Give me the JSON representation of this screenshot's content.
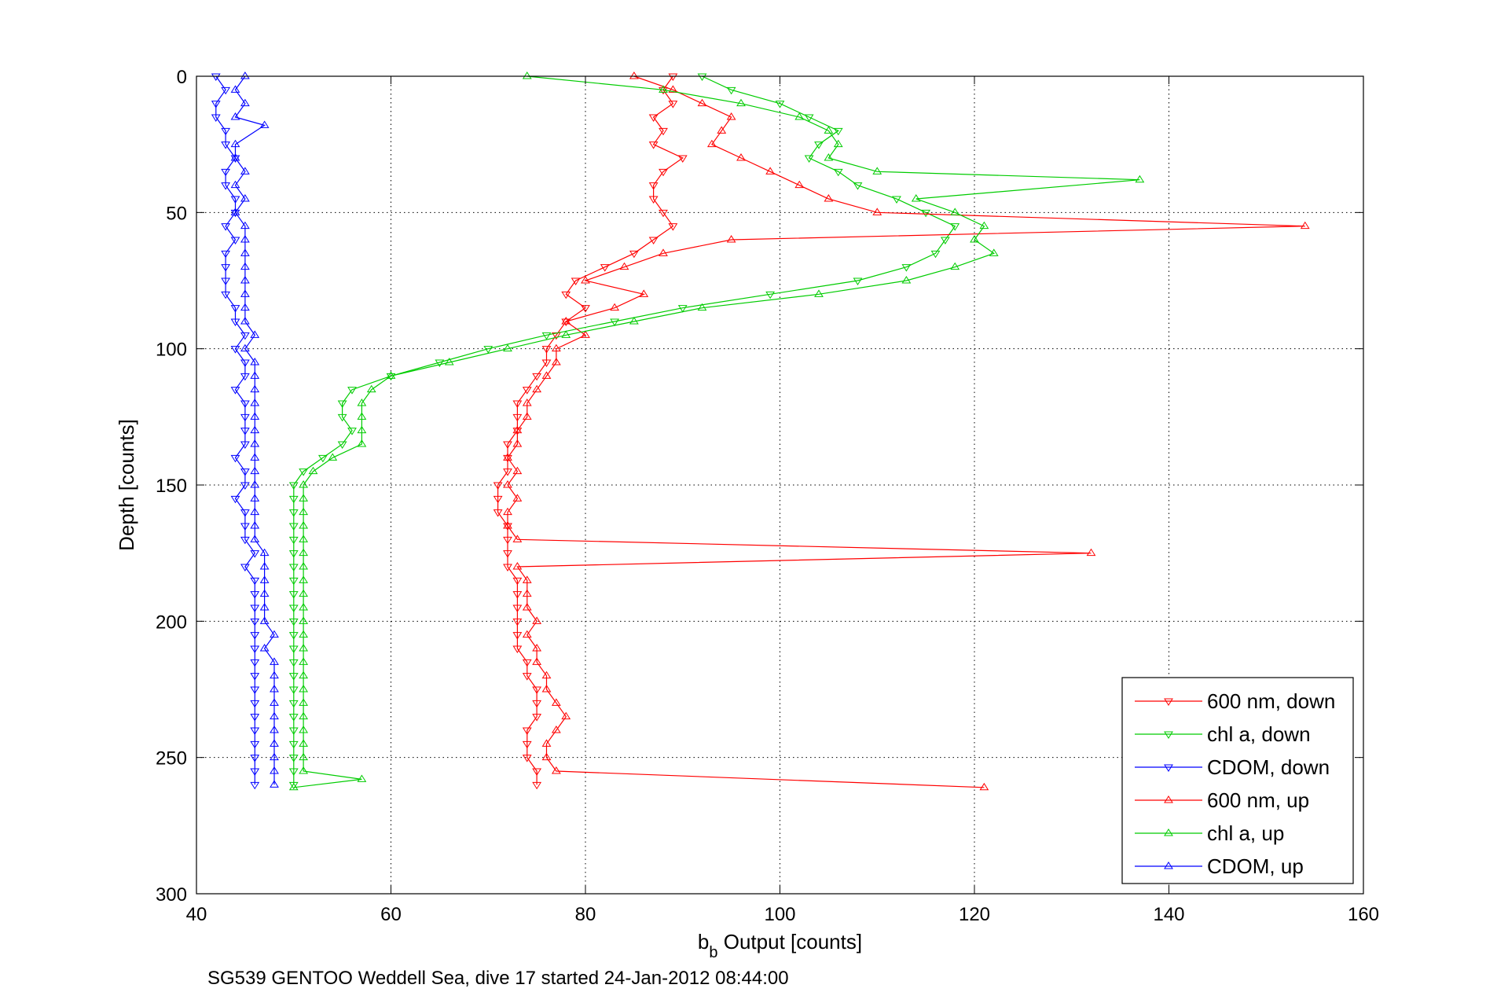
{
  "chart_data": {
    "type": "line",
    "xlabel_main": "b",
    "xlabel_sub": "b",
    "xlabel_rest": " Output [counts]",
    "ylabel": "Depth [counts]",
    "caption": "SG539 GENTOO Weddell Sea, dive 17 started 24-Jan-2012 08:44:00",
    "xlim": [
      40,
      160
    ],
    "ylim": [
      0,
      300
    ],
    "y_reversed": true,
    "grid": true,
    "legend_position": "bottom-right",
    "x_ticks": [
      "40",
      "60",
      "80",
      "100",
      "120",
      "140",
      "160"
    ],
    "y_ticks": [
      "0",
      "50",
      "100",
      "150",
      "200",
      "250",
      "300"
    ],
    "series": [
      {
        "name": "600 nm, down",
        "color": "#ff0000",
        "marker": "triangle-down",
        "points": [
          [
            89,
            0
          ],
          [
            88,
            5
          ],
          [
            89,
            10
          ],
          [
            87,
            15
          ],
          [
            88,
            20
          ],
          [
            87,
            25
          ],
          [
            90,
            30
          ],
          [
            88,
            35
          ],
          [
            87,
            40
          ],
          [
            87,
            45
          ],
          [
            88,
            50
          ],
          [
            89,
            55
          ],
          [
            87,
            60
          ],
          [
            85,
            65
          ],
          [
            82,
            70
          ],
          [
            79,
            75
          ],
          [
            78,
            80
          ],
          [
            80,
            85
          ],
          [
            78,
            90
          ],
          [
            77,
            95
          ],
          [
            76,
            100
          ],
          [
            76,
            105
          ],
          [
            75,
            110
          ],
          [
            74,
            115
          ],
          [
            73,
            120
          ],
          [
            73,
            125
          ],
          [
            73,
            130
          ],
          [
            72,
            135
          ],
          [
            72,
            140
          ],
          [
            72,
            145
          ],
          [
            71,
            150
          ],
          [
            71,
            155
          ],
          [
            71,
            160
          ],
          [
            72,
            165
          ],
          [
            72,
            170
          ],
          [
            72,
            175
          ],
          [
            72,
            180
          ],
          [
            73,
            185
          ],
          [
            73,
            190
          ],
          [
            73,
            195
          ],
          [
            73,
            200
          ],
          [
            73,
            205
          ],
          [
            73,
            210
          ],
          [
            74,
            215
          ],
          [
            74,
            220
          ],
          [
            75,
            225
          ],
          [
            75,
            230
          ],
          [
            75,
            235
          ],
          [
            74,
            240
          ],
          [
            74,
            245
          ],
          [
            74,
            250
          ],
          [
            75,
            255
          ],
          [
            75,
            260
          ]
        ]
      },
      {
        "name": "chl a, down",
        "color": "#00cc00",
        "marker": "triangle-down",
        "points": [
          [
            92,
            0
          ],
          [
            95,
            5
          ],
          [
            100,
            10
          ],
          [
            103,
            15
          ],
          [
            106,
            20
          ],
          [
            104,
            25
          ],
          [
            103,
            30
          ],
          [
            106,
            35
          ],
          [
            108,
            40
          ],
          [
            112,
            45
          ],
          [
            115,
            50
          ],
          [
            118,
            55
          ],
          [
            117,
            60
          ],
          [
            116,
            65
          ],
          [
            113,
            70
          ],
          [
            108,
            75
          ],
          [
            99,
            80
          ],
          [
            90,
            85
          ],
          [
            83,
            90
          ],
          [
            76,
            95
          ],
          [
            70,
            100
          ],
          [
            65,
            105
          ],
          [
            60,
            110
          ],
          [
            56,
            115
          ],
          [
            55,
            120
          ],
          [
            55,
            125
          ],
          [
            56,
            130
          ],
          [
            55,
            135
          ],
          [
            53,
            140
          ],
          [
            51,
            145
          ],
          [
            50,
            150
          ],
          [
            50,
            155
          ],
          [
            50,
            160
          ],
          [
            50,
            165
          ],
          [
            50,
            170
          ],
          [
            50,
            175
          ],
          [
            50,
            180
          ],
          [
            50,
            185
          ],
          [
            50,
            190
          ],
          [
            50,
            195
          ],
          [
            50,
            200
          ],
          [
            50,
            205
          ],
          [
            50,
            210
          ],
          [
            50,
            215
          ],
          [
            50,
            220
          ],
          [
            50,
            225
          ],
          [
            50,
            230
          ],
          [
            50,
            235
          ],
          [
            50,
            240
          ],
          [
            50,
            245
          ],
          [
            50,
            250
          ],
          [
            50,
            255
          ],
          [
            50,
            260
          ]
        ]
      },
      {
        "name": "CDOM, down",
        "color": "#0000ff",
        "marker": "triangle-down",
        "points": [
          [
            42,
            0
          ],
          [
            43,
            5
          ],
          [
            42,
            10
          ],
          [
            42,
            15
          ],
          [
            43,
            20
          ],
          [
            43,
            25
          ],
          [
            44,
            30
          ],
          [
            43,
            35
          ],
          [
            43,
            40
          ],
          [
            44,
            45
          ],
          [
            44,
            50
          ],
          [
            43,
            55
          ],
          [
            44,
            60
          ],
          [
            43,
            65
          ],
          [
            43,
            70
          ],
          [
            43,
            75
          ],
          [
            43,
            80
          ],
          [
            44,
            85
          ],
          [
            44,
            90
          ],
          [
            45,
            95
          ],
          [
            44,
            100
          ],
          [
            45,
            105
          ],
          [
            45,
            110
          ],
          [
            44,
            115
          ],
          [
            45,
            120
          ],
          [
            45,
            125
          ],
          [
            45,
            130
          ],
          [
            45,
            135
          ],
          [
            44,
            140
          ],
          [
            45,
            145
          ],
          [
            45,
            150
          ],
          [
            44,
            155
          ],
          [
            45,
            160
          ],
          [
            45,
            165
          ],
          [
            45,
            170
          ],
          [
            46,
            175
          ],
          [
            45,
            180
          ],
          [
            46,
            185
          ],
          [
            46,
            190
          ],
          [
            46,
            195
          ],
          [
            46,
            200
          ],
          [
            46,
            205
          ],
          [
            46,
            210
          ],
          [
            46,
            215
          ],
          [
            46,
            220
          ],
          [
            46,
            225
          ],
          [
            46,
            230
          ],
          [
            46,
            235
          ],
          [
            46,
            240
          ],
          [
            46,
            245
          ],
          [
            46,
            250
          ],
          [
            46,
            255
          ],
          [
            46,
            260
          ]
        ]
      },
      {
        "name": "600 nm, up",
        "color": "#ff0000",
        "marker": "triangle-up",
        "points": [
          [
            85,
            0
          ],
          [
            89,
            5
          ],
          [
            92,
            10
          ],
          [
            95,
            15
          ],
          [
            94,
            20
          ],
          [
            93,
            25
          ],
          [
            96,
            30
          ],
          [
            99,
            35
          ],
          [
            102,
            40
          ],
          [
            105,
            45
          ],
          [
            110,
            50
          ],
          [
            154,
            55
          ],
          [
            95,
            60
          ],
          [
            88,
            65
          ],
          [
            84,
            70
          ],
          [
            80,
            75
          ],
          [
            86,
            80
          ],
          [
            83,
            85
          ],
          [
            78,
            90
          ],
          [
            80,
            95
          ],
          [
            77,
            100
          ],
          [
            77,
            105
          ],
          [
            76,
            110
          ],
          [
            75,
            115
          ],
          [
            74,
            120
          ],
          [
            74,
            125
          ],
          [
            73,
            130
          ],
          [
            73,
            135
          ],
          [
            72,
            140
          ],
          [
            73,
            145
          ],
          [
            72,
            150
          ],
          [
            73,
            155
          ],
          [
            72,
            160
          ],
          [
            72,
            165
          ],
          [
            73,
            170
          ],
          [
            132,
            175
          ],
          [
            73,
            180
          ],
          [
            74,
            185
          ],
          [
            74,
            190
          ],
          [
            74,
            195
          ],
          [
            75,
            200
          ],
          [
            74,
            205
          ],
          [
            75,
            210
          ],
          [
            75,
            215
          ],
          [
            76,
            220
          ],
          [
            76,
            225
          ],
          [
            77,
            230
          ],
          [
            78,
            235
          ],
          [
            77,
            240
          ],
          [
            76,
            245
          ],
          [
            76,
            250
          ],
          [
            77,
            255
          ],
          [
            121,
            261
          ]
        ]
      },
      {
        "name": "chl a, up",
        "color": "#00cc00",
        "marker": "triangle-up",
        "points": [
          [
            74,
            0
          ],
          [
            88,
            5
          ],
          [
            96,
            10
          ],
          [
            102,
            15
          ],
          [
            105,
            20
          ],
          [
            106,
            25
          ],
          [
            105,
            30
          ],
          [
            110,
            35
          ],
          [
            137,
            38
          ],
          [
            114,
            45
          ],
          [
            118,
            50
          ],
          [
            121,
            55
          ],
          [
            120,
            60
          ],
          [
            122,
            65
          ],
          [
            118,
            70
          ],
          [
            113,
            75
          ],
          [
            104,
            80
          ],
          [
            92,
            85
          ],
          [
            85,
            90
          ],
          [
            78,
            95
          ],
          [
            72,
            100
          ],
          [
            66,
            105
          ],
          [
            60,
            110
          ],
          [
            58,
            115
          ],
          [
            57,
            120
          ],
          [
            57,
            125
          ],
          [
            57,
            130
          ],
          [
            57,
            135
          ],
          [
            54,
            140
          ],
          [
            52,
            145
          ],
          [
            51,
            150
          ],
          [
            51,
            155
          ],
          [
            51,
            160
          ],
          [
            51,
            165
          ],
          [
            51,
            170
          ],
          [
            51,
            175
          ],
          [
            51,
            180
          ],
          [
            51,
            185
          ],
          [
            51,
            190
          ],
          [
            51,
            195
          ],
          [
            51,
            200
          ],
          [
            51,
            205
          ],
          [
            51,
            210
          ],
          [
            51,
            215
          ],
          [
            51,
            220
          ],
          [
            51,
            225
          ],
          [
            51,
            230
          ],
          [
            51,
            235
          ],
          [
            51,
            240
          ],
          [
            51,
            245
          ],
          [
            51,
            250
          ],
          [
            51,
            255
          ],
          [
            57,
            258
          ],
          [
            50,
            261
          ]
        ]
      },
      {
        "name": "CDOM, up",
        "color": "#0000ff",
        "marker": "triangle-up",
        "points": [
          [
            45,
            0
          ],
          [
            44,
            5
          ],
          [
            45,
            10
          ],
          [
            44,
            15
          ],
          [
            47,
            18
          ],
          [
            44,
            25
          ],
          [
            44,
            30
          ],
          [
            45,
            35
          ],
          [
            44,
            40
          ],
          [
            45,
            45
          ],
          [
            44,
            50
          ],
          [
            45,
            55
          ],
          [
            45,
            60
          ],
          [
            45,
            65
          ],
          [
            45,
            70
          ],
          [
            45,
            75
          ],
          [
            45,
            80
          ],
          [
            45,
            85
          ],
          [
            45,
            90
          ],
          [
            46,
            95
          ],
          [
            45,
            100
          ],
          [
            46,
            105
          ],
          [
            46,
            110
          ],
          [
            46,
            115
          ],
          [
            46,
            120
          ],
          [
            46,
            125
          ],
          [
            46,
            130
          ],
          [
            46,
            135
          ],
          [
            46,
            140
          ],
          [
            46,
            145
          ],
          [
            46,
            150
          ],
          [
            46,
            155
          ],
          [
            46,
            160
          ],
          [
            46,
            165
          ],
          [
            46,
            170
          ],
          [
            47,
            175
          ],
          [
            47,
            180
          ],
          [
            47,
            185
          ],
          [
            47,
            190
          ],
          [
            47,
            195
          ],
          [
            47,
            200
          ],
          [
            48,
            205
          ],
          [
            47,
            210
          ],
          [
            48,
            215
          ],
          [
            48,
            220
          ],
          [
            48,
            225
          ],
          [
            48,
            230
          ],
          [
            48,
            235
          ],
          [
            48,
            240
          ],
          [
            48,
            245
          ],
          [
            48,
            250
          ],
          [
            48,
            255
          ],
          [
            48,
            260
          ]
        ]
      }
    ]
  }
}
